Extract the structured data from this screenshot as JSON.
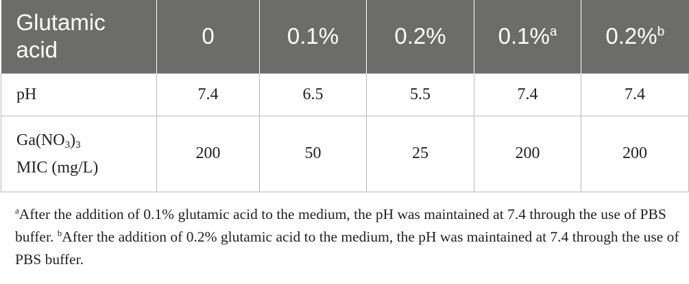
{
  "header": {
    "row_label": "Glutamic acid",
    "columns": [
      {
        "label": "0",
        "mark": ""
      },
      {
        "label": "0.1%",
        "mark": ""
      },
      {
        "label": "0.2%",
        "mark": ""
      },
      {
        "label": "0.1%",
        "mark": "a"
      },
      {
        "label": "0.2%",
        "mark": "b"
      }
    ]
  },
  "rows": {
    "ph": {
      "label": "pH",
      "values": [
        "7.4",
        "6.5",
        "5.5",
        "7.4",
        "7.4"
      ]
    },
    "mic": {
      "label_prefix": "Ga(NO",
      "label_sub": "3",
      "label_mid": ")",
      "label_sub2": "3",
      "label_line2": "MIC (mg/L)",
      "values": [
        "200",
        "50",
        "25",
        "200",
        "200"
      ]
    }
  },
  "footnotes": {
    "a_mark": "a",
    "a_text": "After the addition of 0.1% glutamic acid to the medium, the pH was maintained at 7.4 through the use of PBS buffer. ",
    "b_mark": "b",
    "b_text": "After the addition of 0.2% glutamic acid to the medium, the pH was maintained at 7.4 through the use of PBS buffer."
  }
}
